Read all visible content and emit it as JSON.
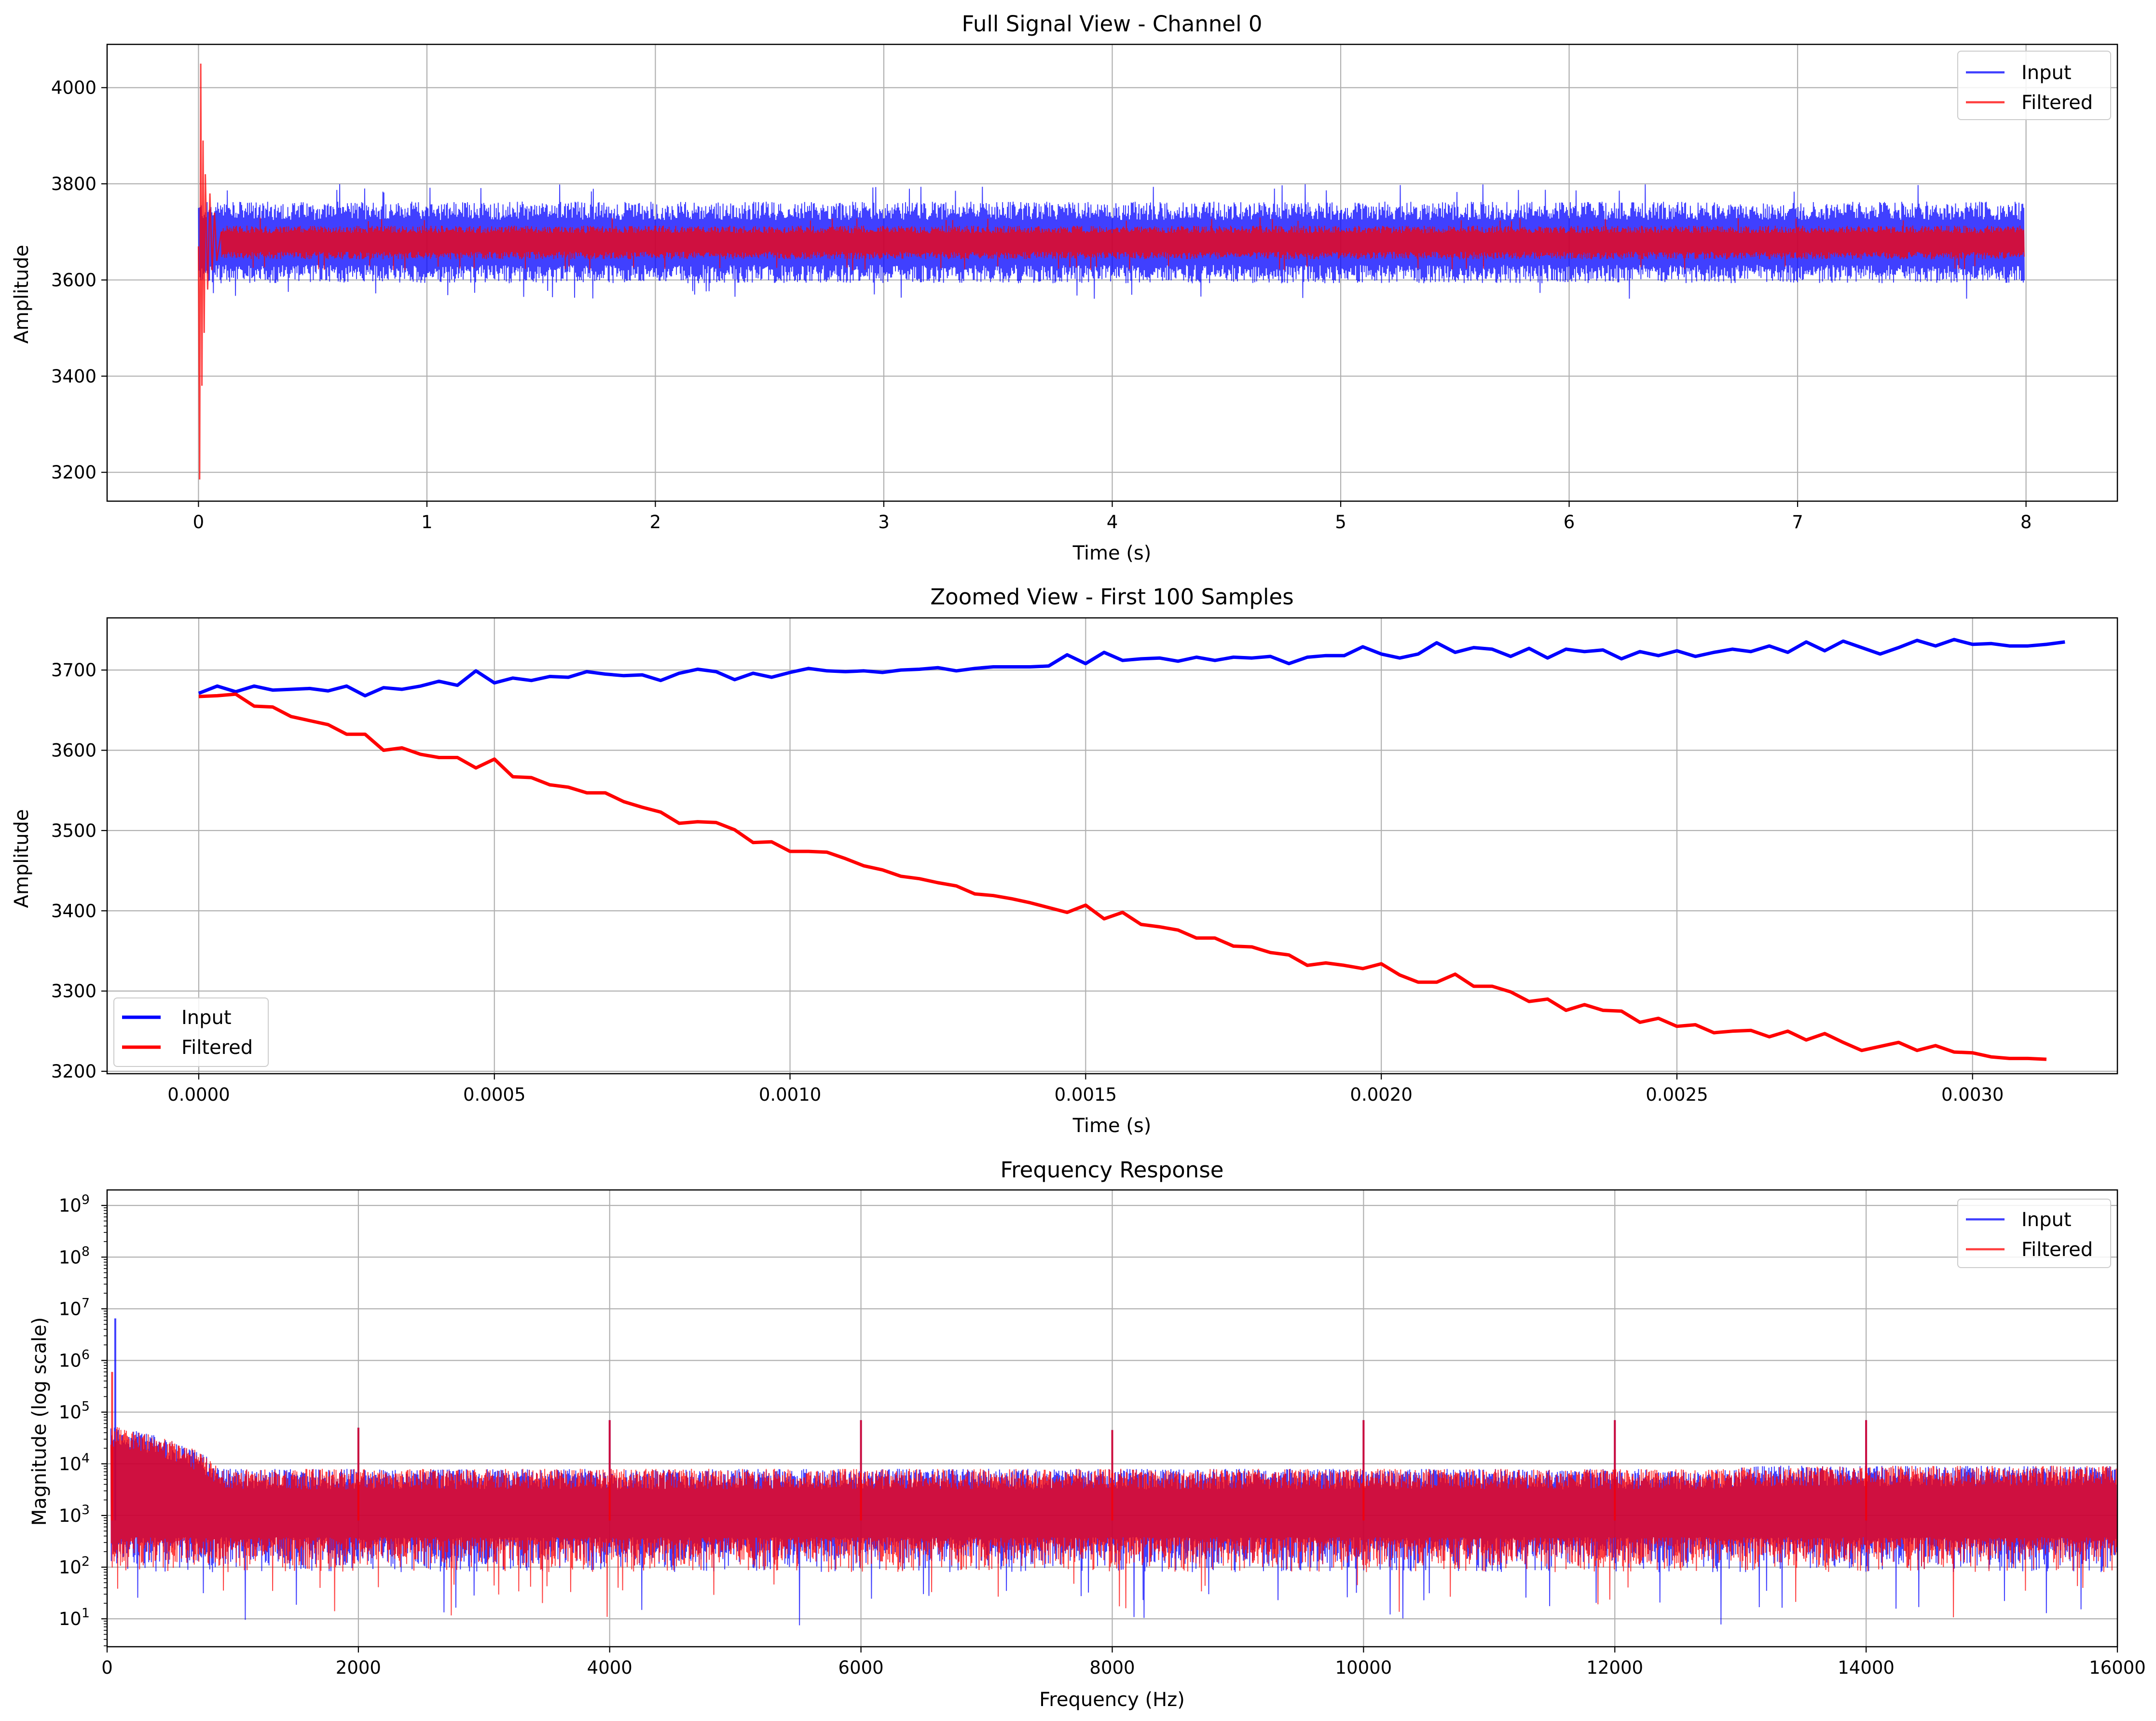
{
  "colors": {
    "input": "#0000ff",
    "filtered": "#ff0000",
    "overlap": "#cc1650",
    "grid": "#b0b0b0"
  },
  "chart_data": [
    {
      "type": "line",
      "title": "Full Signal View - Channel 0",
      "xlabel": "Time (s)",
      "ylabel": "Amplitude",
      "xlim": [
        -0.4,
        8.4
      ],
      "ylim": [
        3140,
        4090
      ],
      "xticks": [
        0,
        1,
        2,
        3,
        4,
        5,
        6,
        7,
        8
      ],
      "yticks": [
        3200,
        3400,
        3600,
        3800,
        4000
      ],
      "grid": true,
      "legend": "top-right",
      "series": [
        {
          "name": "Input",
          "color": "#0000ff",
          "alpha": 0.75,
          "envelope": {
            "t_range": [
              0,
              7.99
            ],
            "center": 3678,
            "half_width": 85,
            "spikes_up": 3800,
            "spikes_down": 3560
          }
        },
        {
          "name": "Filtered",
          "color": "#ff0000",
          "alpha": 0.75,
          "transient": {
            "t": [
              0,
              0.005,
              0.01,
              0.015,
              0.02,
              0.025,
              0.03,
              0.04,
              0.05,
              0.06,
              0.07,
              0.08,
              0.1
            ],
            "y": [
              3670,
              3185,
              4050,
              3380,
              3890,
              3490,
              3820,
              3580,
              3780,
              3620,
              3740,
              3640,
              3700
            ]
          },
          "envelope": {
            "t_range": [
              0.1,
              7.99
            ],
            "center": 3678,
            "half_width": 35,
            "spikes_up": 3730,
            "spikes_down": 3620
          }
        }
      ]
    },
    {
      "type": "line",
      "title": "Zoomed View - First 100 Samples",
      "xlabel": "Time (s)",
      "ylabel": "Amplitude",
      "xlim": [
        -0.000155,
        0.003245
      ],
      "ylim": [
        3197,
        3765
      ],
      "xticks": [
        "0.0000",
        "0.0005",
        "0.0010",
        "0.0015",
        "0.0020",
        "0.0025",
        "0.0030"
      ],
      "yticks": [
        3200,
        3300,
        3400,
        3500,
        3600,
        3700
      ],
      "grid": true,
      "legend": "bottom-left",
      "sample_interval": 3.125e-05,
      "series": [
        {
          "name": "Input",
          "color": "#0000ff",
          "values": [
            3671,
            3680,
            3673,
            3680,
            3675,
            3676,
            3677,
            3674,
            3680,
            3668,
            3678,
            3676,
            3680,
            3686,
            3681,
            3699,
            3684,
            3690,
            3687,
            3692,
            3691,
            3698,
            3695,
            3693,
            3694,
            3687,
            3696,
            3701,
            3698,
            3688,
            3696,
            3691,
            3697,
            3702,
            3699,
            3698,
            3699,
            3697,
            3700,
            3701,
            3703,
            3699,
            3702,
            3704,
            3704,
            3704,
            3705,
            3719,
            3708,
            3722,
            3712,
            3714,
            3715,
            3711,
            3716,
            3712,
            3716,
            3715,
            3717,
            3708,
            3716,
            3718,
            3718,
            3729,
            3720,
            3715,
            3720,
            3734,
            3722,
            3728,
            3726,
            3717,
            3727,
            3715,
            3726,
            3723,
            3725,
            3714,
            3723,
            3718,
            3724,
            3717,
            3722,
            3726,
            3723,
            3730,
            3722,
            3735,
            3724,
            3736,
            3728,
            3720,
            3728,
            3737,
            3730,
            3738,
            3732,
            3733,
            3730,
            3730,
            3732,
            3735
          ]
        },
        {
          "name": "Filtered",
          "color": "#ff0000",
          "values": [
            3667,
            3668,
            3670,
            3655,
            3654,
            3642,
            3637,
            3632,
            3620,
            3620,
            3600,
            3603,
            3595,
            3591,
            3591,
            3578,
            3589,
            3567,
            3566,
            3557,
            3554,
            3547,
            3547,
            3536,
            3529,
            3523,
            3509,
            3511,
            3510,
            3501,
            3485,
            3486,
            3474,
            3474,
            3473,
            3465,
            3456,
            3451,
            3443,
            3440,
            3435,
            3431,
            3421,
            3419,
            3415,
            3410,
            3404,
            3398,
            3407,
            3390,
            3398,
            3383,
            3380,
            3376,
            3366,
            3366,
            3356,
            3355,
            3348,
            3345,
            3332,
            3335,
            3332,
            3328,
            3334,
            3320,
            3311,
            3311,
            3321,
            3306,
            3306,
            3299,
            3287,
            3290,
            3276,
            3283,
            3276,
            3275,
            3261,
            3266,
            3256,
            3258,
            3248,
            3250,
            3251,
            3243,
            3250,
            3239,
            3247,
            3236,
            3226,
            3231,
            3236,
            3226,
            3232,
            3224,
            3223,
            3218,
            3216,
            3216,
            3215
          ]
        }
      ]
    },
    {
      "type": "line",
      "title": "Frequency Response",
      "xlabel": "Frequency (Hz)",
      "ylabel": "Magnitude (log scale)",
      "xlim": [
        0,
        16000
      ],
      "ylim_log10": [
        0.46,
        9.3
      ],
      "yscale": "log",
      "xticks": [
        0,
        2000,
        4000,
        6000,
        8000,
        10000,
        12000,
        14000,
        16000
      ],
      "yticks": [
        "10^1",
        "10^2",
        "10^3",
        "10^4",
        "10^5",
        "10^6",
        "10^7",
        "10^8",
        "10^9"
      ],
      "grid": true,
      "legend": "top-right",
      "series": [
        {
          "name": "Input",
          "color": "#0000ff",
          "alpha": 0.75,
          "peaks": [
            {
              "f": 65,
              "mag": 6500000
            },
            {
              "f": 2000,
              "mag": 50000
            },
            {
              "f": 4000,
              "mag": 70000
            },
            {
              "f": 6000,
              "mag": 70000
            },
            {
              "f": 8000,
              "mag": 45000
            },
            {
              "f": 10000,
              "mag": 70000
            },
            {
              "f": 12000,
              "mag": 70000
            },
            {
              "f": 14000,
              "mag": 70000
            }
          ],
          "noise_floor": {
            "median": 1500,
            "upper": 8000,
            "lower": 100,
            "min_dips": 7
          }
        },
        {
          "name": "Filtered",
          "color": "#ff0000",
          "alpha": 0.75,
          "peaks": [
            {
              "f": 40,
              "mag": 600000
            },
            {
              "f": 2000,
              "mag": 50000
            },
            {
              "f": 4000,
              "mag": 70000
            },
            {
              "f": 6000,
              "mag": 70000
            },
            {
              "f": 8000,
              "mag": 45000
            },
            {
              "f": 10000,
              "mag": 70000
            },
            {
              "f": 12000,
              "mag": 70000
            },
            {
              "f": 14000,
              "mag": 70000
            }
          ],
          "noise_floor": {
            "median": 1500,
            "upper": 8000,
            "lower": 100,
            "min_dips": 10
          }
        }
      ]
    }
  ],
  "legend_labels": {
    "input": "Input",
    "filtered": "Filtered"
  }
}
